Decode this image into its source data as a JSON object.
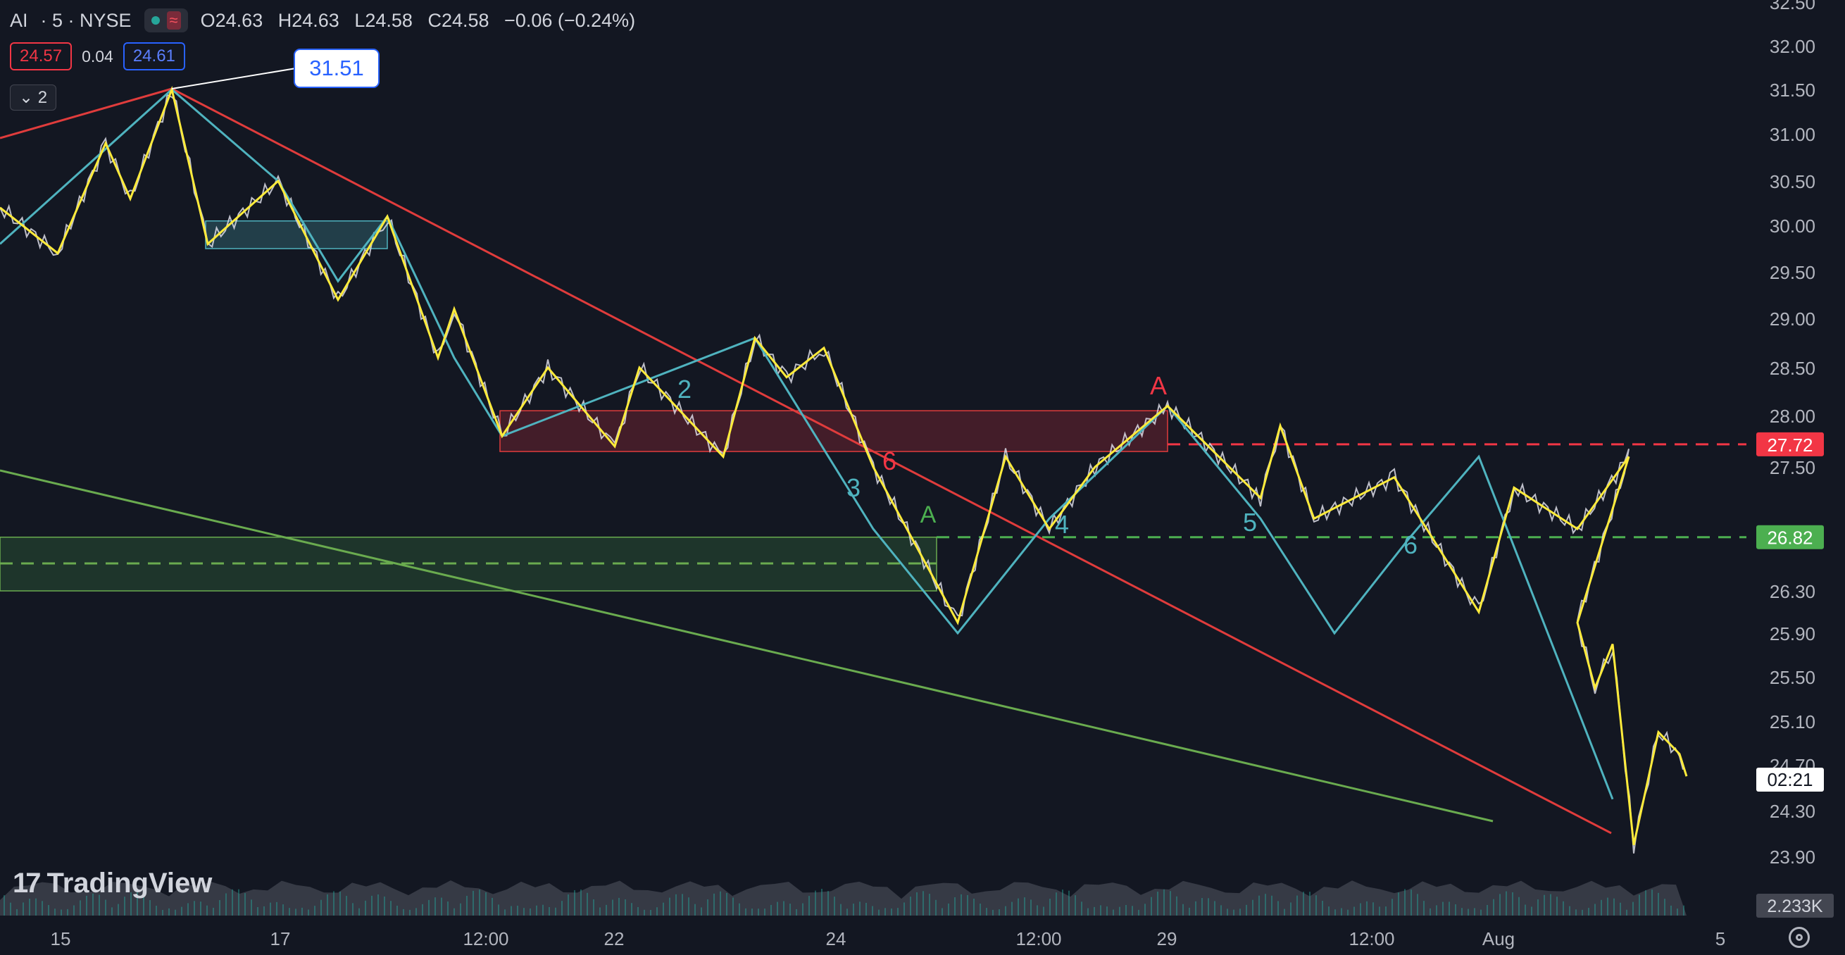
{
  "header": {
    "symbol": "AI",
    "interval_exchange": "· 5 · NYSE",
    "open_label": "O",
    "open": "24.63",
    "high_label": "H",
    "high": "24.63",
    "low_label": "L",
    "low": "24.58",
    "close_label": "C",
    "close": "24.58",
    "change": "−0.06 (−0.24%)"
  },
  "trade": {
    "sell": "24.57",
    "spread": "0.04",
    "buy": "24.61"
  },
  "indicators_toggle": "2",
  "logo_text": "TradingView",
  "colors": {
    "background": "#131722",
    "wave_yellow": "#ffeb3b",
    "wave_teal": "#4fb3bf",
    "trend_red": "#e03c3c",
    "trend_green": "#6aab4f",
    "red_label": "#f23645",
    "green_label": "#4caf50"
  },
  "chart_data": {
    "type": "line",
    "symbol": "AI",
    "y_ticks": [
      "32.50",
      "32.00",
      "31.50",
      "31.00",
      "30.50",
      "30.00",
      "29.50",
      "29.00",
      "28.50",
      "28.00",
      "27.50",
      "26.30",
      "25.90",
      "25.50",
      "25.10",
      "24.70",
      "24.30",
      "23.90"
    ],
    "x_ticks": [
      "15",
      "17",
      "12:00",
      "22",
      "24",
      "12:00",
      "29",
      "12:00",
      "Aug",
      "5"
    ],
    "price_labels": {
      "red_level": "27.72",
      "green_level": "26.82",
      "countdown": "02:21",
      "volume": "2.233K"
    },
    "callout": "31.51",
    "wave_labels": [
      "A",
      "6",
      "A",
      "2",
      "3",
      "4",
      "5",
      "6"
    ],
    "zigzag_yellow": {
      "x": [
        "t0",
        "t1",
        "t2",
        "t3",
        "t4",
        "t5",
        "t6",
        "t7",
        "t8",
        "t9",
        "t10",
        "t11",
        "t12",
        "t13",
        "t14",
        "t15",
        "t16",
        "t17",
        "t18",
        "t19",
        "t20",
        "t21",
        "t22",
        "t23",
        "t24",
        "t25",
        "t26",
        "t27",
        "t28",
        "t29",
        "t30",
        "t31",
        "t32",
        "t33",
        "t34",
        "t35",
        "t36",
        "t37",
        "t38",
        "t39"
      ],
      "y": [
        30.2,
        29.7,
        30.9,
        30.3,
        31.5,
        29.8,
        30.5,
        29.2,
        30.1,
        28.6,
        29.1,
        27.8,
        28.5,
        27.7,
        28.5,
        27.6,
        28.8,
        28.4,
        28.7,
        27.5,
        26.0,
        27.6,
        26.9,
        27.5,
        28.1,
        27.2,
        27.9,
        27.0,
        27.4,
        26.1,
        27.3,
        26.9,
        27.6,
        26.0,
        25.4,
        25.8,
        24.0,
        25.0,
        24.8,
        24.6
      ]
    },
    "zigzag_teal": {
      "y": [
        29.8,
        31.5,
        30.5,
        29.4,
        30.1,
        28.6,
        27.8,
        28.8,
        26.9,
        25.9,
        27.0,
        28.1,
        27.0,
        25.9,
        26.8,
        27.6,
        24.4
      ]
    },
    "trendlines": [
      {
        "color": "red",
        "from": [
          0,
          31.0
        ],
        "to": [
          1,
          24.0
        ]
      },
      {
        "color": "green",
        "from": [
          0,
          27.5
        ],
        "to": [
          1,
          24.3
        ]
      }
    ],
    "zones": [
      {
        "color": "red",
        "top": 28.05,
        "bottom": 27.65
      },
      {
        "color": "green",
        "top": 26.82,
        "bottom": 26.3
      },
      {
        "color": "teal",
        "top": 30.05,
        "bottom": 29.75
      }
    ]
  }
}
